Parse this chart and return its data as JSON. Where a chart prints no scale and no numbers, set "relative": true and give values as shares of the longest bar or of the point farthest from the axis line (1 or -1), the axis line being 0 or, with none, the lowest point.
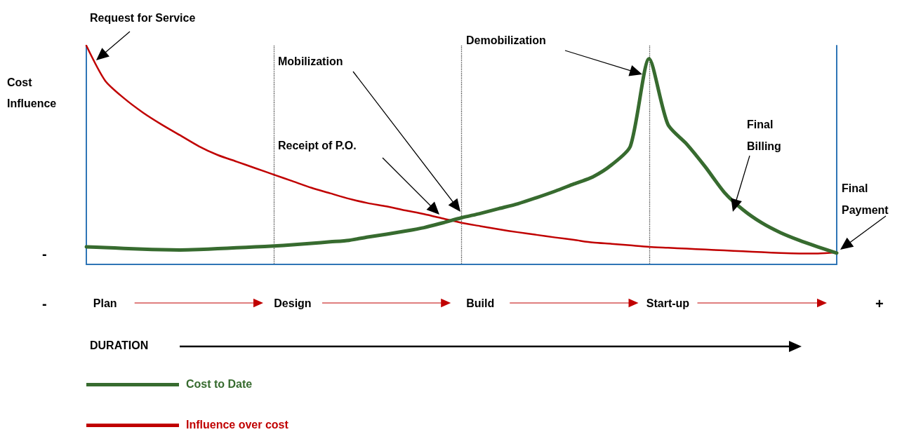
{
  "chart_data": {
    "type": "line",
    "relative": true,
    "ylabel": "Cost Influence",
    "xlabel": "DURATION",
    "categories": [
      null,
      "Plan",
      null,
      null,
      null,
      null,
      null,
      null,
      null,
      null,
      null,
      "Design",
      null,
      null,
      null,
      null,
      null,
      null,
      null,
      null,
      null,
      "Build",
      null,
      null,
      null,
      null,
      null,
      null,
      null,
      null,
      null,
      "Start-up",
      null,
      null,
      null,
      null,
      null,
      null,
      null,
      null,
      null
    ],
    "series": [
      {
        "name": "Cost to Date",
        "color": "#376b2f",
        "values": [
          0.08,
          0.077,
          0.073,
          0.07,
          0.067,
          0.066,
          0.068,
          0.072,
          0.076,
          0.08,
          0.084,
          0.09,
          0.096,
          0.103,
          0.11,
          0.125,
          0.138,
          0.152,
          0.168,
          0.19,
          0.213,
          0.233,
          0.255,
          0.277,
          0.305,
          0.335,
          0.368,
          0.4,
          0.455,
          0.54,
          0.94,
          0.64,
          0.55,
          0.445,
          0.33,
          0.25,
          0.19,
          0.145,
          0.11,
          0.08,
          0.052
        ]
      },
      {
        "name": "Influence over cost",
        "color": "#c00000",
        "values": [
          1,
          0.84,
          0.76,
          0.695,
          0.64,
          0.59,
          0.54,
          0.5,
          0.47,
          0.44,
          0.41,
          0.38,
          0.35,
          0.325,
          0.3,
          0.28,
          0.265,
          0.247,
          0.23,
          0.21,
          0.19,
          0.175,
          0.16,
          0.147,
          0.135,
          0.123,
          0.112,
          0.1,
          0.094,
          0.087,
          0.08,
          0.076,
          0.072,
          0.068,
          0.064,
          0.06,
          0.056,
          0.052,
          0.05,
          0.05,
          0.055
        ]
      }
    ],
    "annotations": [
      "Request for Service",
      "Mobilization",
      "Receipt of P.O.",
      "Demobilization",
      "Final Billing",
      "Final Payment",
      "-",
      "-",
      "+"
    ],
    "legend": "bottom left",
    "grid": "x",
    "marker": "none",
    "line_style": "solid"
  }
}
